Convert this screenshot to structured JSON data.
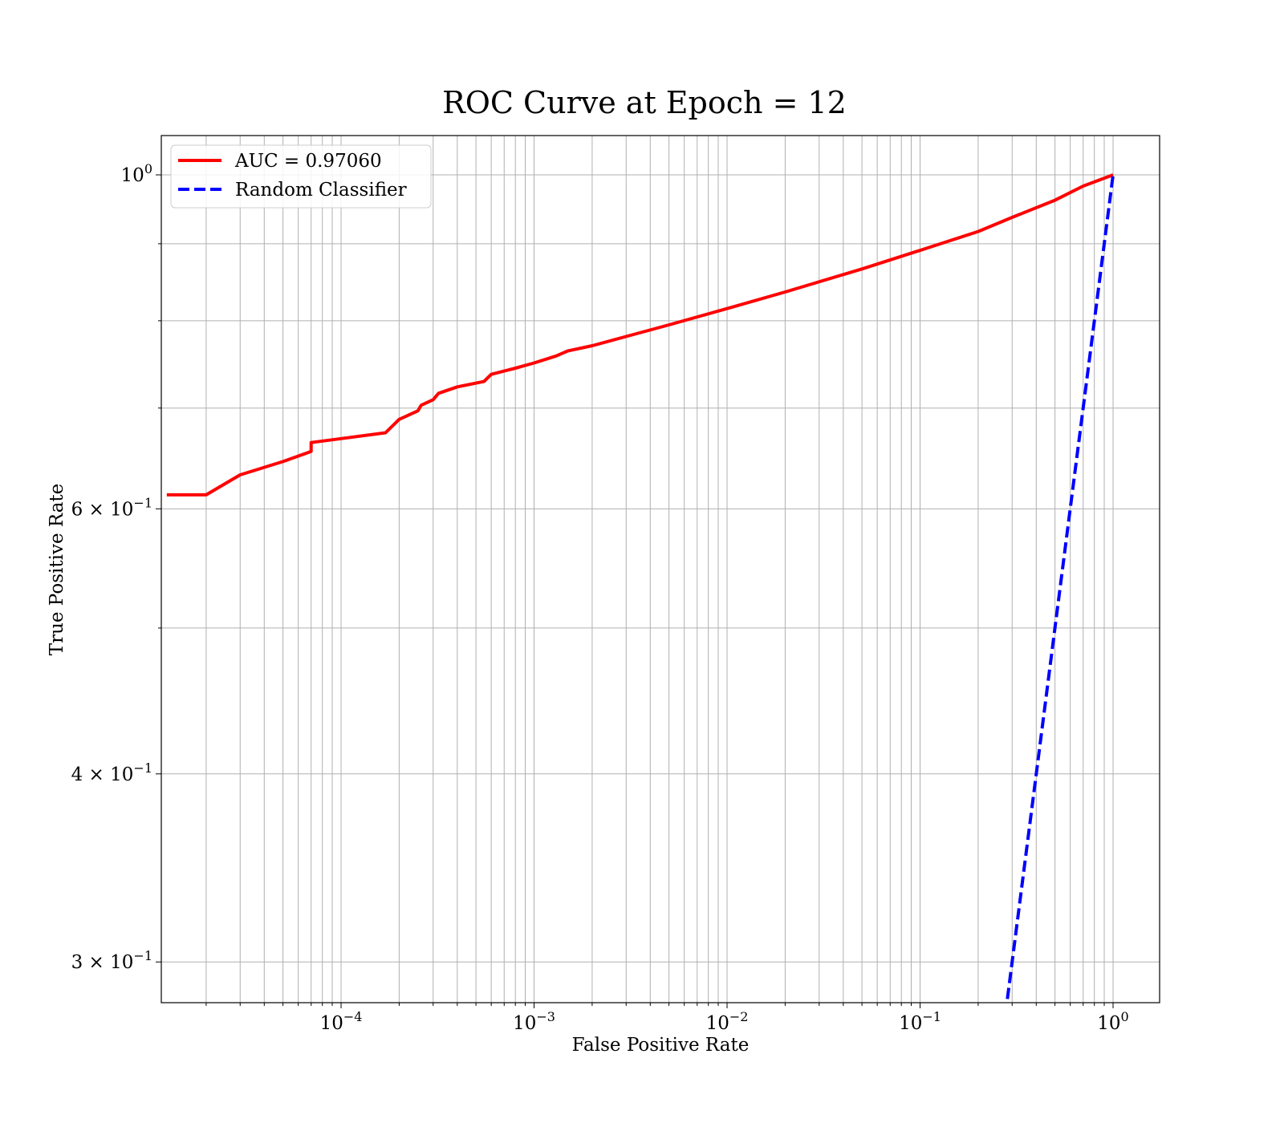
{
  "chart_data": {
    "type": "line",
    "title": "ROC Curve at Epoch = 12",
    "xlabel": "False Positive Rate",
    "ylabel": "True Positive Rate",
    "xscale": "log",
    "yscale": "log",
    "xlim": [
      1.25e-05,
      1.7
    ],
    "ylim": [
      0.27,
      1.03
    ],
    "grid": "on (major and minor)",
    "legend_position": "top-left",
    "x_ticks": [
      {
        "value": 0.0001,
        "base": "10",
        "exp": "−4"
      },
      {
        "value": 0.001,
        "base": "10",
        "exp": "−3"
      },
      {
        "value": 0.01,
        "base": "10",
        "exp": "−2"
      },
      {
        "value": 0.1,
        "base": "10",
        "exp": "−1"
      },
      {
        "value": 1,
        "base": "10",
        "exp": "0"
      }
    ],
    "y_ticks": [
      {
        "value": 1.0,
        "mant": "",
        "base": "10",
        "exp": "0"
      },
      {
        "value": 0.6,
        "mant": "6 × ",
        "base": "10",
        "exp": "−1"
      },
      {
        "value": 0.4,
        "mant": "4 × ",
        "base": "10",
        "exp": "−1"
      },
      {
        "value": 0.3,
        "mant": "3 × ",
        "base": "10",
        "exp": "−1"
      }
    ],
    "series": [
      {
        "name": "AUC = 0.97060",
        "color": "#ff0000",
        "style": "solid",
        "points": [
          [
            1.25e-05,
            0.613
          ],
          [
            2e-05,
            0.613
          ],
          [
            3e-05,
            0.632
          ],
          [
            5e-05,
            0.645
          ],
          [
            7e-05,
            0.655
          ],
          [
            7e-05,
            0.664
          ],
          [
            0.0001,
            0.668
          ],
          [
            0.00017,
            0.674
          ],
          [
            0.0002,
            0.688
          ],
          [
            0.00025,
            0.697
          ],
          [
            0.00026,
            0.703
          ],
          [
            0.0003,
            0.709
          ],
          [
            0.00032,
            0.716
          ],
          [
            0.0004,
            0.723
          ],
          [
            0.00055,
            0.729
          ],
          [
            0.0006,
            0.737
          ],
          [
            0.0008,
            0.744
          ],
          [
            0.001,
            0.75
          ],
          [
            0.0013,
            0.758
          ],
          [
            0.0015,
            0.764
          ],
          [
            0.002,
            0.77
          ],
          [
            0.003,
            0.781
          ],
          [
            0.005,
            0.795
          ],
          [
            0.01,
            0.815
          ],
          [
            0.02,
            0.836
          ],
          [
            0.05,
            0.866
          ],
          [
            0.1,
            0.891
          ],
          [
            0.2,
            0.917
          ],
          [
            0.3,
            0.937
          ],
          [
            0.5,
            0.962
          ],
          [
            0.7,
            0.983
          ],
          [
            1.0,
            1.0
          ]
        ]
      },
      {
        "name": "Random Classifier",
        "color": "#0000ff",
        "style": "dashed",
        "points": [
          [
            0.27,
            0.27
          ],
          [
            0.4,
            0.4
          ],
          [
            0.6,
            0.6
          ],
          [
            0.8,
            0.8
          ],
          [
            1.0,
            1.0
          ]
        ]
      }
    ]
  }
}
